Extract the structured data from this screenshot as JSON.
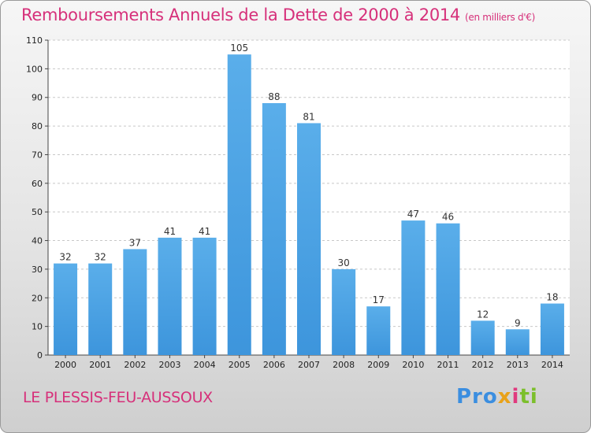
{
  "title": "Remboursements Annuels de la Dette de 2000 à 2014",
  "unit_note": "(en milliers d'€)",
  "town": "LE PLESSIS-FEU-AUSSOUX",
  "logo": {
    "p1": "Pro",
    "p2": "x",
    "p3": "i",
    "p4": "ti"
  },
  "colors": {
    "bar": "#3d95dc",
    "title": "#d6307a",
    "grid": "#c8c8c8"
  },
  "chart_data": {
    "type": "bar",
    "title": "Remboursements Annuels de la Dette de 2000 à 2014",
    "categories": [
      "2000",
      "2001",
      "2002",
      "2003",
      "2004",
      "2005",
      "2006",
      "2007",
      "2008",
      "2009",
      "2010",
      "2011",
      "2012",
      "2013",
      "2014"
    ],
    "values": [
      32,
      32,
      37,
      41,
      41,
      105,
      88,
      81,
      30,
      17,
      47,
      46,
      12,
      9,
      18
    ],
    "ylim": [
      0,
      110
    ],
    "yticks": [
      0,
      10,
      20,
      30,
      40,
      50,
      60,
      70,
      80,
      90,
      100,
      110
    ],
    "grid": true,
    "data_labels": true
  }
}
